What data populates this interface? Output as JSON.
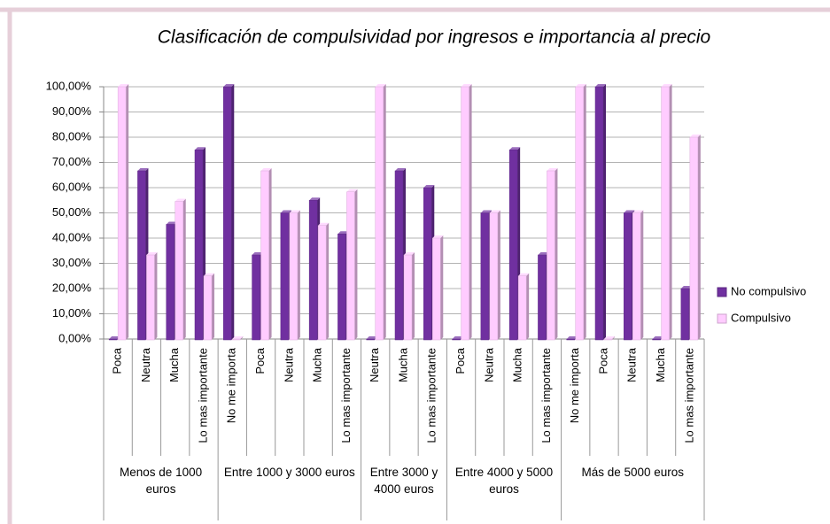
{
  "chart_data": {
    "type": "bar",
    "title": "Clasificación de compulsividad por ingresos e importancia al precio",
    "groups": [
      {
        "label": "Menos de 1000 euros",
        "categories": [
          "Poca",
          "Neutra",
          "Mucha",
          "Lo mas importante"
        ]
      },
      {
        "label": "Entre 1000 y 3000 euros",
        "categories": [
          "No me importa",
          "Poca",
          "Neutra",
          "Mucha",
          "Lo mas importante"
        ]
      },
      {
        "label": "Entre 3000 y 4000 euros",
        "categories": [
          "Neutra",
          "Mucha",
          "Lo mas importante"
        ]
      },
      {
        "label": "Entre 4000 y 5000 euros",
        "categories": [
          "Poca",
          "Neutra",
          "Mucha",
          "Lo mas importante"
        ]
      },
      {
        "label": "Más de 5000 euros",
        "categories": [
          "No me importa",
          "Poca",
          "Neutra",
          "Mucha",
          "Lo mas importante"
        ]
      }
    ],
    "series": [
      {
        "name": "No compulsivo",
        "color": "#7030a0",
        "values": [
          0,
          66.67,
          45.45,
          75,
          100,
          33.33,
          50,
          55,
          41.67,
          0,
          66.67,
          60,
          0,
          50,
          75,
          33.33,
          0,
          100,
          50,
          0,
          20
        ]
      },
      {
        "name": "Compulsivo",
        "color": "#ffccff",
        "values": [
          100,
          33.33,
          54.55,
          25,
          0,
          66.67,
          50,
          45,
          58.33,
          100,
          33.33,
          40,
          100,
          50,
          25,
          66.67,
          100,
          0,
          50,
          100,
          80
        ]
      }
    ],
    "ylim": [
      0,
      100
    ],
    "yticks": [
      {
        "value": 0,
        "label": "0,00%"
      },
      {
        "value": 10,
        "label": "10,00%"
      },
      {
        "value": 20,
        "label": "20,00%"
      },
      {
        "value": 30,
        "label": "30,00%"
      },
      {
        "value": 40,
        "label": "40,00%"
      },
      {
        "value": 50,
        "label": "50,00%"
      },
      {
        "value": 60,
        "label": "60,00%"
      },
      {
        "value": 70,
        "label": "70,00%"
      },
      {
        "value": 80,
        "label": "80,00%"
      },
      {
        "value": 90,
        "label": "90,00%"
      },
      {
        "value": 100,
        "label": "100,00%"
      }
    ],
    "grid": true,
    "legend": "right"
  }
}
